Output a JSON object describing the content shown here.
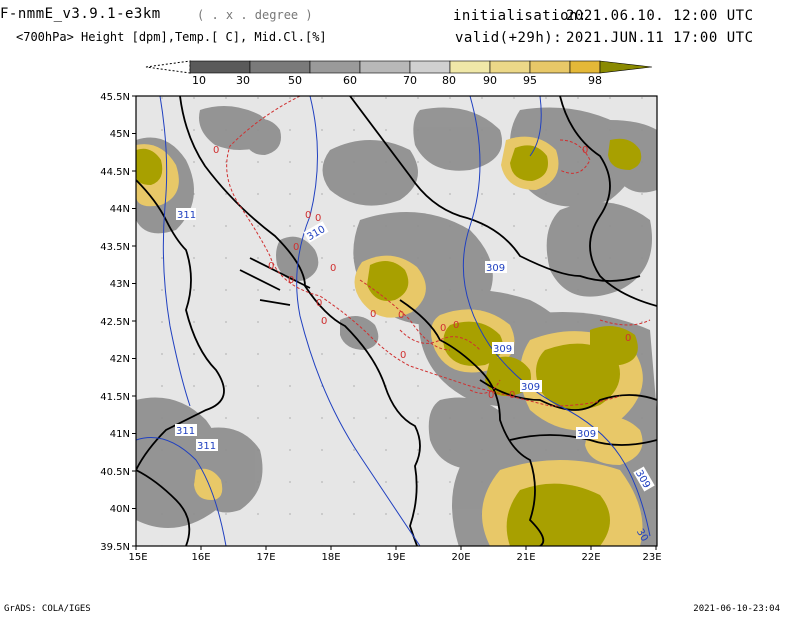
{
  "header": {
    "model": "F-nmmE_v3.9.1-e3km",
    "units": "( . x . degree )",
    "fields": "<700hPa> Height [dpm],Temp.[ C], Mid.Cl.[%]",
    "init_label": "initialisation:",
    "init_value": "2021.06.10.   12:00 UTC",
    "valid_label": "valid(+29h):",
    "valid_value": "2021.JUN.11   17:00 UTC"
  },
  "colorbar": {
    "labels": [
      "10",
      "30",
      "50",
      "60",
      "70",
      "80",
      "90",
      "95",
      "98"
    ],
    "colors": [
      "#5a5a5a",
      "#7a7a7a",
      "#9a9a9a",
      "#b8b8b8",
      "#d0d0d0",
      "#f0e8a8",
      "#ecd888",
      "#e8c868",
      "#e4b838",
      "#c8b400",
      "#8a8a00"
    ]
  },
  "axes": {
    "lat_labels": [
      "45.5N",
      "45N",
      "44.5N",
      "44N",
      "43.5N",
      "43N",
      "42.5N",
      "42N",
      "41.5N",
      "41N",
      "40.5N",
      "40N",
      "39.5N"
    ],
    "lon_labels": [
      "15E",
      "16E",
      "17E",
      "18E",
      "19E",
      "20E",
      "21E",
      "22E",
      "23E"
    ]
  },
  "contours": {
    "height_labels": [
      "310",
      "311",
      "309",
      "309",
      "309",
      "309",
      "311",
      "311",
      "309",
      "30"
    ],
    "temp_labels": [
      "0",
      "0",
      "0",
      "0",
      "0",
      "0",
      "0",
      "0",
      "0",
      "0",
      "0",
      "0",
      "0",
      "0",
      "0",
      "0",
      "0",
      "0"
    ]
  },
  "footer": {
    "left": "GrADS: COLA/IGES",
    "right": "2021-06-10-23:04"
  },
  "colors": {
    "sea": "#e6e6e6",
    "cloud_low": "#8c8c8c",
    "cloud_high": "#a8a000",
    "height_contour": "#2040c0",
    "temp_contour": "#d03030",
    "border": "#000000"
  }
}
